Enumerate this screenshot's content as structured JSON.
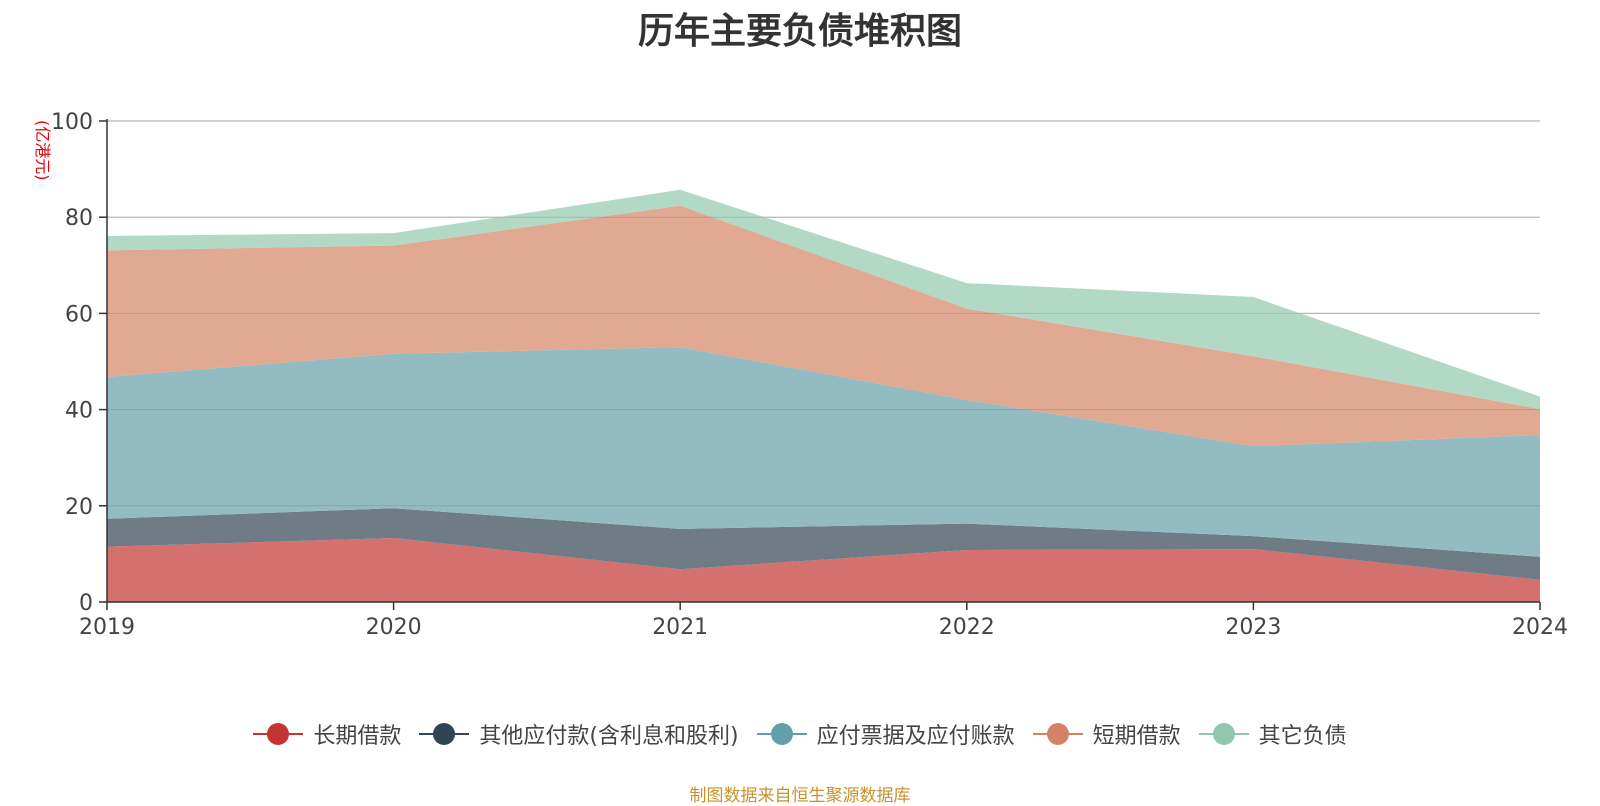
{
  "title": "历年主要负债堆积图",
  "unit_label": "(亿港元)",
  "source": "制图数据来自恒生聚源数据库",
  "chart_data": {
    "type": "area",
    "stacked": true,
    "x": [
      "2019",
      "2020",
      "2021",
      "2022",
      "2023",
      "2024"
    ],
    "ylim": [
      0,
      100
    ],
    "yticks": [
      0,
      20,
      40,
      60,
      80,
      100
    ],
    "grid": true,
    "legend_position": "bottom",
    "series": [
      {
        "name": "长期借款",
        "color": "#c23531",
        "fill": "#d4706d",
        "values": [
          11.5,
          13.3,
          6.8,
          10.8,
          11.0,
          4.6
        ]
      },
      {
        "name": "其他应付款(含利息和股利)",
        "color": "#2f4554",
        "fill": "#6f7c86",
        "values": [
          5.8,
          6.2,
          8.4,
          5.5,
          2.7,
          4.8
        ]
      },
      {
        "name": "应付票据及应付账款",
        "color": "#61a0a8",
        "fill": "#93bcc2",
        "values": [
          29.5,
          32.1,
          37.8,
          25.7,
          18.7,
          25.3
        ]
      },
      {
        "name": "短期借款",
        "color": "#d48265",
        "fill": "#e1a892",
        "values": [
          26.3,
          22.5,
          29.4,
          19.0,
          18.7,
          5.4
        ]
      },
      {
        "name": "其它负债",
        "color": "#91c7ae",
        "fill": "#b1d9c5",
        "values": [
          3.0,
          2.6,
          3.3,
          5.3,
          12.3,
          2.6
        ]
      }
    ]
  }
}
